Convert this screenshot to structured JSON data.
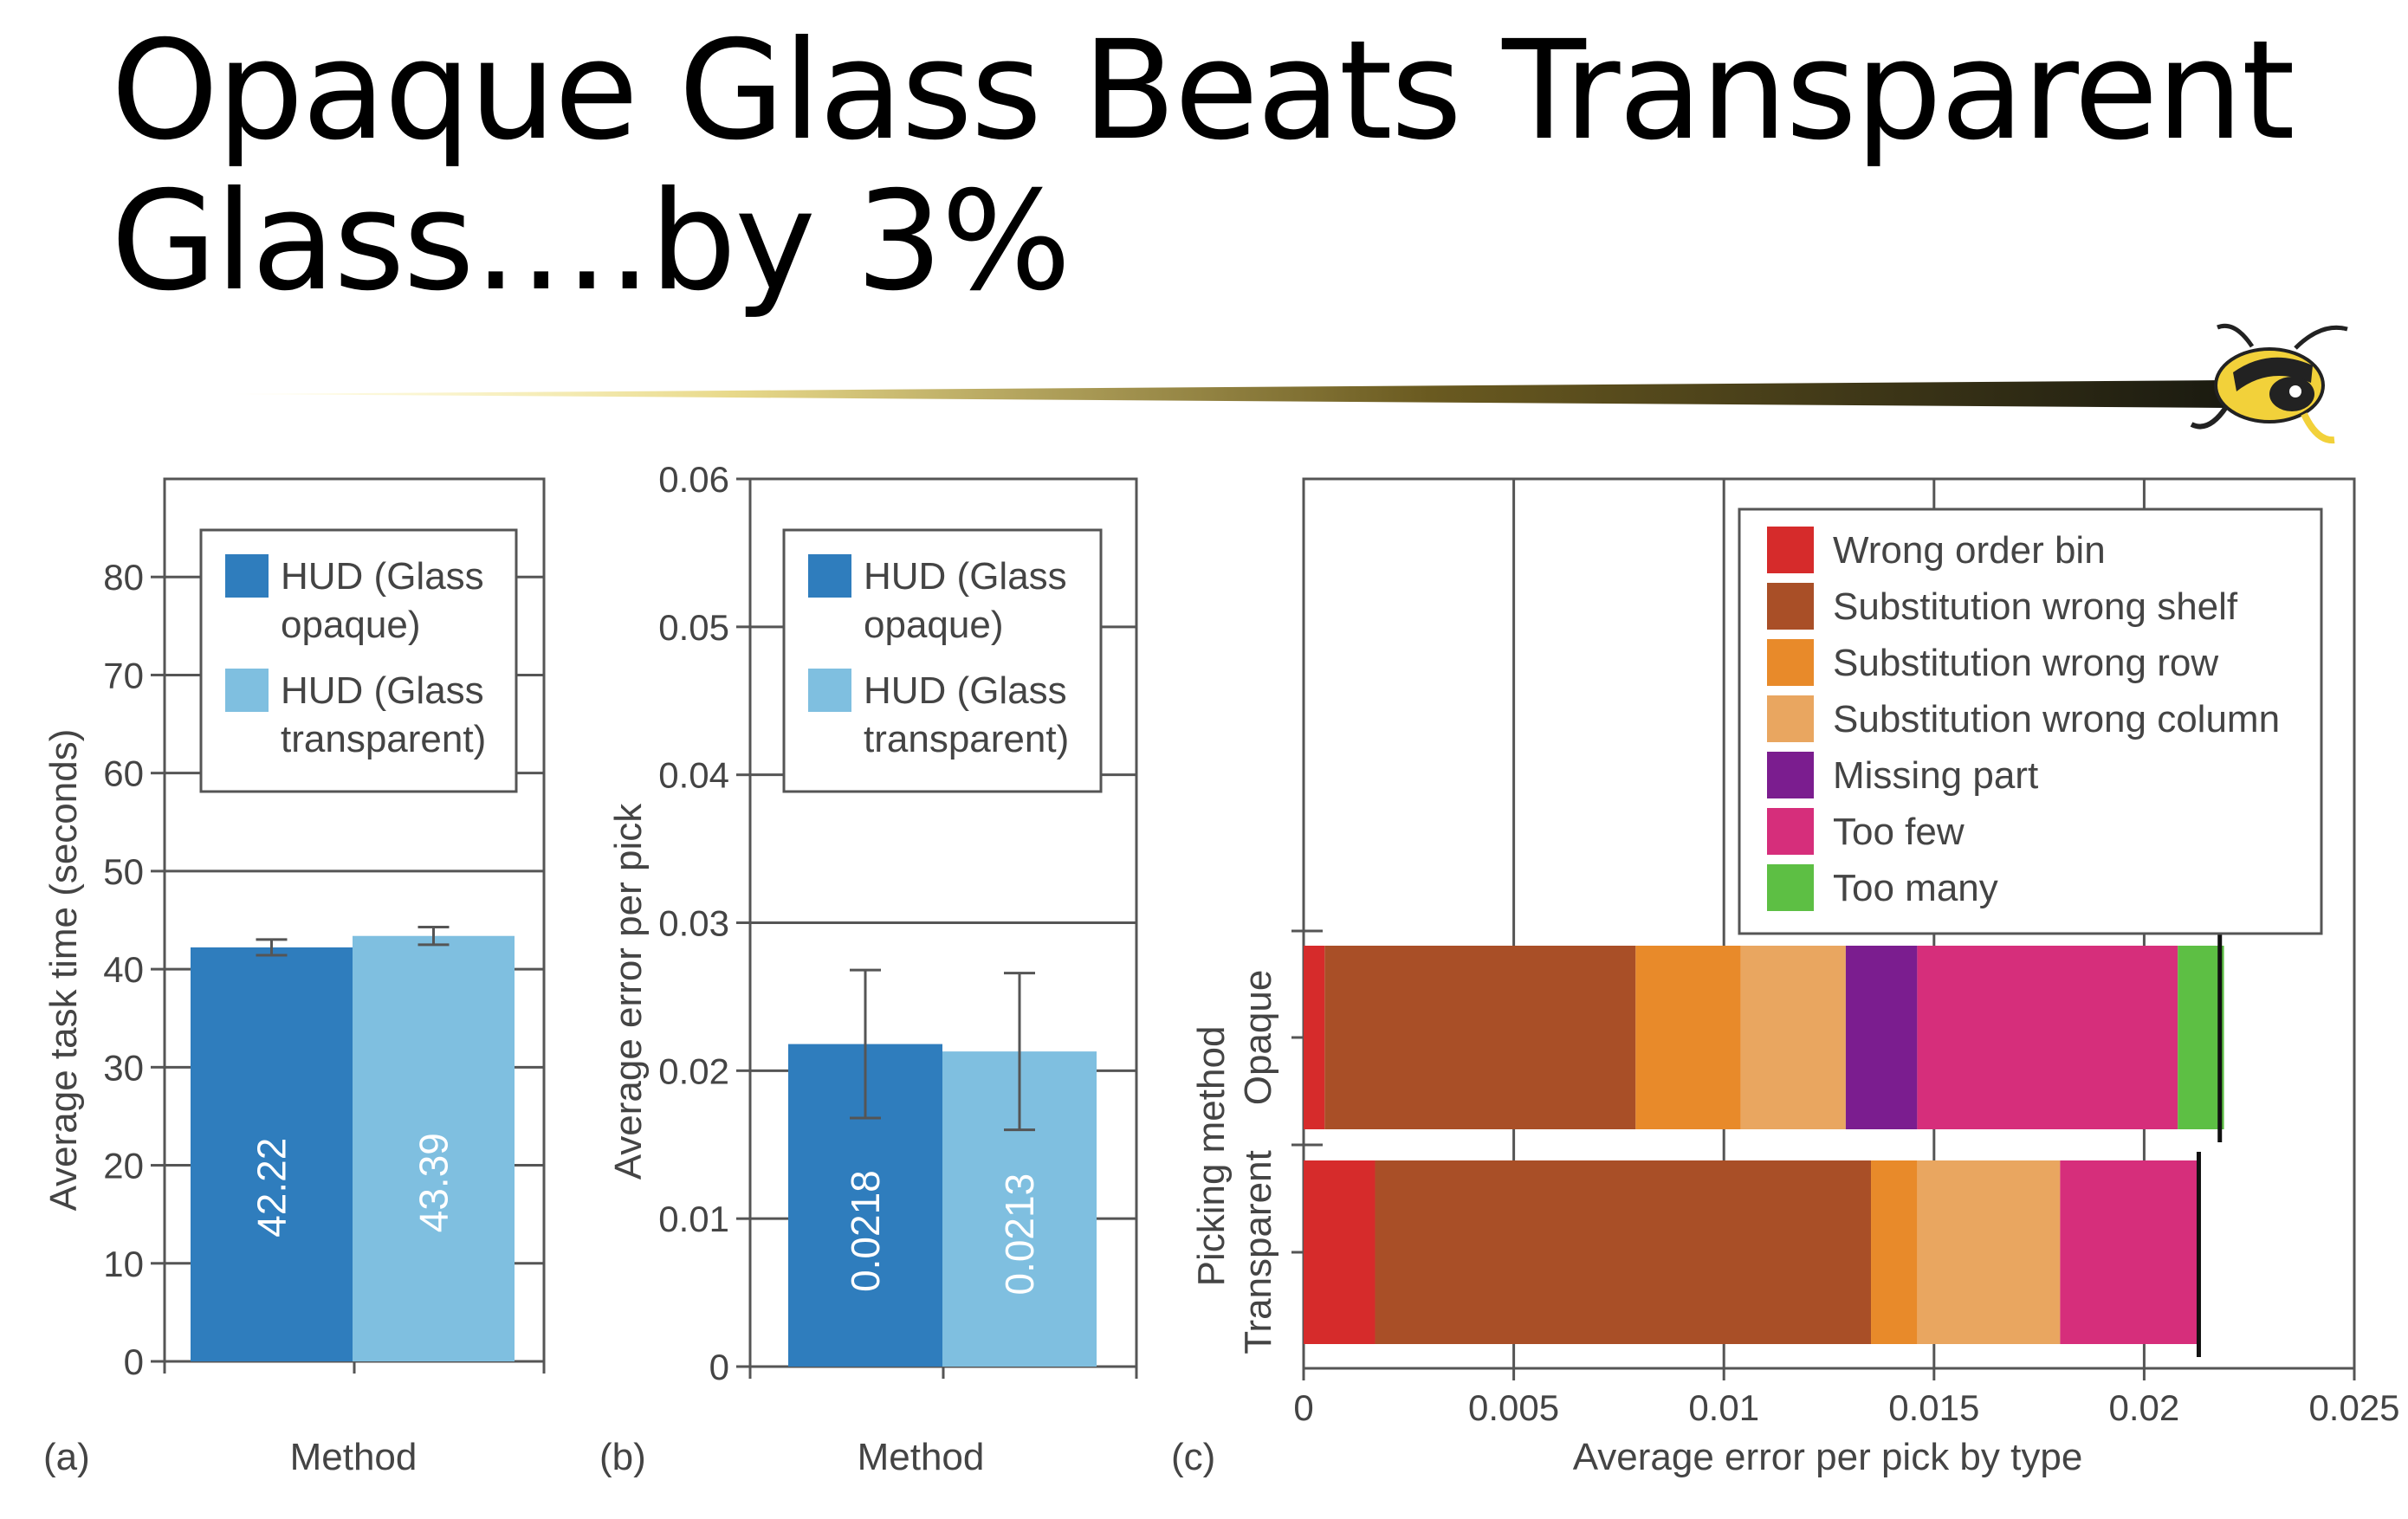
{
  "slide": {
    "title_line1": "Opaque Glass Beats Transparent",
    "title_line2": "Glass….by 3%",
    "mascot_icon": "yellow-jacket-mascot-icon"
  },
  "colors": {
    "opaque": "#2f7dbd",
    "transparent": "#7fbfe0",
    "error_types": [
      "#d62b2b",
      "#a94f27",
      "#e88a2a",
      "#e9a660",
      "#7b1d8f",
      "#d62e7b",
      "#5dbf44"
    ]
  },
  "chart_data": [
    {
      "type": "bar",
      "panel_label": "(a)",
      "categories": [
        "HUD (Glass opaque)",
        "HUD (Glass transparent)"
      ],
      "legend_lines": [
        [
          "HUD (Glass",
          "opaque)"
        ],
        [
          "HUD (Glass",
          "transparent)"
        ]
      ],
      "values": [
        42.22,
        43.39
      ],
      "value_labels": [
        "42.22",
        "43.39"
      ],
      "error": [
        0.8,
        0.9
      ],
      "xlabel": "Method",
      "ylabel": "Average task time (seconds)",
      "ylim": [
        0,
        90
      ],
      "yticks": [
        0,
        10,
        20,
        30,
        40,
        50,
        60,
        70,
        80
      ],
      "ytick_labels": [
        "0",
        "10",
        "20",
        "30",
        "40",
        "50",
        "60",
        "70",
        "80"
      ],
      "grid": "horizontal",
      "legend": "top"
    },
    {
      "type": "bar",
      "panel_label": "(b)",
      "categories": [
        "HUD (Glass opaque)",
        "HUD (Glass transparent)"
      ],
      "legend_lines": [
        [
          "HUD (Glass",
          "opaque)"
        ],
        [
          "HUD (Glass",
          "transparent)"
        ]
      ],
      "values": [
        0.0218,
        0.0213
      ],
      "value_labels": [
        "0.0218",
        "0.0213"
      ],
      "error": [
        0.005,
        0.0053
      ],
      "xlabel": "Method",
      "ylabel": "Average error per pick",
      "ylim": [
        0,
        0.06
      ],
      "yticks": [
        0,
        0.01,
        0.02,
        0.03,
        0.04,
        0.05,
        0.06
      ],
      "ytick_labels": [
        "0",
        "0.01",
        "0.02",
        "0.03",
        "0.04",
        "0.05",
        "0.06"
      ],
      "grid": "horizontal",
      "legend": "top"
    },
    {
      "type": "bar",
      "orientation": "horizontal",
      "stacked": true,
      "panel_label": "(c)",
      "categories": [
        "Opaque",
        "Transparent"
      ],
      "series": [
        {
          "name": "Wrong order bin",
          "values": [
            0.0005,
            0.0017
          ]
        },
        {
          "name": "Substitution wrong shelf",
          "values": [
            0.0074,
            0.0118
          ]
        },
        {
          "name": "Substitution wrong row",
          "values": [
            0.0025,
            0.0011
          ]
        },
        {
          "name": "Substitution wrong column",
          "values": [
            0.0025,
            0.0034
          ]
        },
        {
          "name": "Missing part",
          "values": [
            0.0017,
            0.0
          ]
        },
        {
          "name": "Too few",
          "values": [
            0.0062,
            0.0033
          ]
        },
        {
          "name": "Too many",
          "values": [
            0.0011,
            0.0
          ]
        }
      ],
      "totals": [
        0.0218,
        0.0213
      ],
      "xlabel": "Average error per pick by type",
      "ylabel": "Picking method",
      "xlim": [
        0,
        0.025
      ],
      "xticks": [
        0,
        0.005,
        0.01,
        0.015,
        0.02,
        0.025
      ],
      "xtick_labels": [
        "0",
        "0.005",
        "0.01",
        "0.015",
        "0.02",
        "0.025"
      ],
      "grid": "vertical",
      "legend": "top-right"
    }
  ]
}
